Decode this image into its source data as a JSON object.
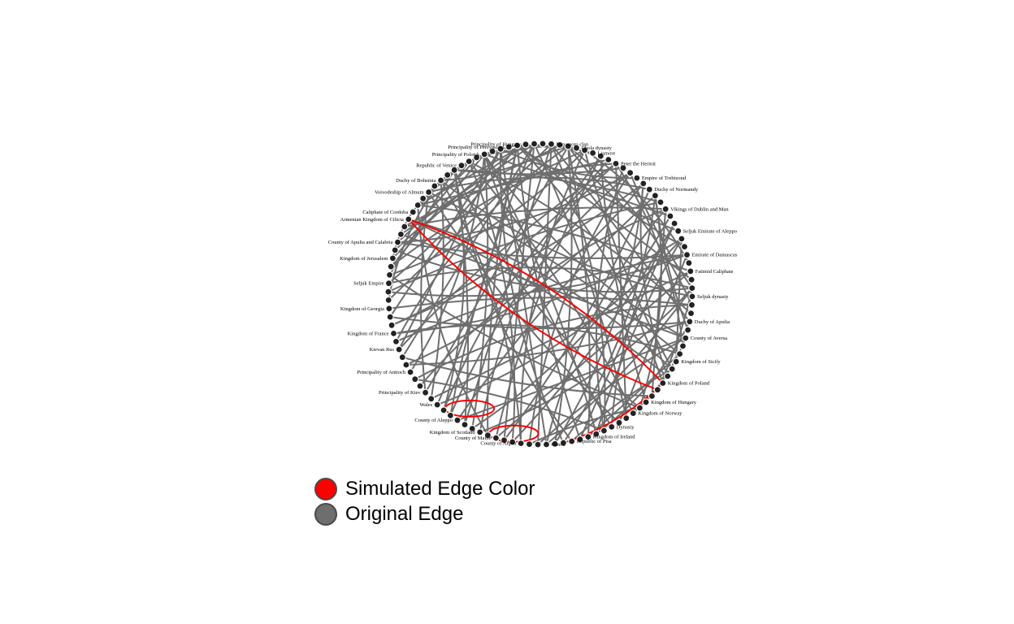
{
  "colors": {
    "simulated": "#ff0000",
    "original": "#6e6e6e",
    "node_fill": "#222222",
    "node_stroke": "#000000"
  },
  "legend": [
    {
      "label": "Simulated Edge Color",
      "color": "#ff0000"
    },
    {
      "label": "Original Edge",
      "color": "#6e6e6e"
    }
  ],
  "graph": {
    "node_count": 112,
    "labels": [
      "Armenian Kingdom of Cilicia",
      "County of Apulia and Calabria",
      "Kingdom of Jerusalem",
      "Seljuk Empire",
      "Kingdom of Georgia",
      "Kingdom of France",
      "Kievan Rus",
      "Principality of Antioch",
      "Principality of Kiev",
      "Wales",
      "County of Aleppo",
      "Kingdom of Scotland",
      "County of Maine",
      "County of Anjou",
      "Genoa",
      "Republic of Pisa",
      "Kingdom of Ireland",
      "Dynasty",
      "Kingdom of Norway",
      "Kingdom of Hungary",
      "Kingdom of Poland",
      "Kingdom of Sicily",
      "County of Aversa",
      "Duchy of Apulia",
      "Seljuk dynasty",
      "Fatimid Caliphate",
      "Emirate of Damascus",
      "Seljuk Emirate of Aleppo",
      "Vikings of Dublin and Man",
      "Duchy of Normandy",
      "Empire of Trebizond",
      "Peter the Hermit",
      "Lismore",
      "Chola dynasty",
      "Minamoto clan",
      "Principality of Hungary",
      "Principality of Pereyaslavl",
      "Principality of Polotsk",
      "Republic of Venice",
      "Duchy of Bohemia",
      "Voivodeship of Almum",
      "Caliphate of Cordoba"
    ],
    "edges": [
      [
        0,
        56
      ],
      [
        0,
        55
      ],
      [
        2,
        60
      ],
      [
        3,
        70
      ],
      [
        3,
        82
      ],
      [
        4,
        90
      ],
      [
        5,
        95
      ],
      [
        6,
        100
      ],
      [
        7,
        50
      ],
      [
        7,
        88
      ],
      [
        8,
        66
      ],
      [
        9,
        77
      ],
      [
        10,
        92
      ],
      [
        12,
        62
      ],
      [
        13,
        85
      ],
      [
        14,
        58
      ],
      [
        15,
        70
      ],
      [
        16,
        98
      ],
      [
        17,
        52
      ],
      [
        18,
        80
      ],
      [
        20,
        64
      ],
      [
        20,
        45
      ],
      [
        22,
        90
      ],
      [
        23,
        106
      ],
      [
        24,
        72
      ],
      [
        25,
        84
      ],
      [
        26,
        94
      ],
      [
        27,
        60
      ],
      [
        28,
        104
      ],
      [
        29,
        75
      ],
      [
        30,
        86
      ],
      [
        31,
        96
      ],
      [
        32,
        68
      ],
      [
        33,
        79
      ],
      [
        34,
        102
      ],
      [
        35,
        88
      ],
      [
        36,
        50
      ],
      [
        37,
        92
      ],
      [
        38,
        66
      ],
      [
        39,
        80
      ],
      [
        40,
        98
      ],
      [
        41,
        56
      ],
      [
        42,
        74
      ],
      [
        43,
        90
      ],
      [
        44,
        62
      ],
      [
        45,
        83
      ],
      [
        46,
        100
      ],
      [
        47,
        70
      ],
      [
        48,
        94
      ],
      [
        49,
        60
      ],
      [
        50,
        104
      ],
      [
        51,
        86
      ],
      [
        52,
        76
      ],
      [
        53,
        66
      ],
      [
        54,
        96
      ],
      [
        55,
        80
      ],
      [
        56,
        88
      ],
      [
        57,
        72
      ],
      [
        58,
        108
      ],
      [
        59,
        84
      ],
      [
        60,
        100
      ],
      [
        61,
        78
      ],
      [
        62,
        92
      ],
      [
        63,
        102
      ],
      [
        64,
        90
      ],
      [
        65,
        106
      ],
      [
        66,
        82
      ],
      [
        67,
        96
      ],
      [
        68,
        110
      ],
      [
        69,
        88
      ],
      [
        1,
        84
      ],
      [
        1,
        76
      ],
      [
        2,
        94
      ],
      [
        3,
        102
      ],
      [
        4,
        66
      ],
      [
        5,
        110
      ],
      [
        6,
        88
      ],
      [
        7,
        104
      ],
      [
        8,
        96
      ],
      [
        9,
        70
      ],
      [
        10,
        106
      ],
      [
        11,
        64
      ],
      [
        12,
        98
      ],
      [
        13,
        80
      ],
      [
        14,
        72
      ],
      [
        15,
        90
      ],
      [
        16,
        84
      ],
      [
        17,
        94
      ],
      [
        18,
        62
      ],
      [
        19,
        100
      ],
      [
        21,
        76
      ],
      [
        22,
        108
      ],
      [
        23,
        68
      ],
      [
        24,
        96
      ],
      [
        25,
        104
      ],
      [
        26,
        82
      ],
      [
        27,
        78
      ],
      [
        28,
        92
      ],
      [
        29,
        100
      ],
      [
        30,
        66
      ],
      [
        31,
        110
      ],
      [
        32,
        86
      ],
      [
        33,
        94
      ],
      [
        34,
        74
      ],
      [
        35,
        106
      ],
      [
        36,
        82
      ],
      [
        37,
        60
      ],
      [
        38,
        98
      ],
      [
        39,
        90
      ],
      [
        40,
        78
      ],
      [
        41,
        104
      ],
      [
        42,
        96
      ],
      [
        43,
        58
      ],
      [
        44,
        100
      ],
      [
        45,
        92
      ],
      [
        46,
        74
      ],
      [
        47,
        108
      ],
      [
        48,
        84
      ],
      [
        49,
        102
      ],
      [
        50,
        78
      ],
      [
        71,
        90
      ],
      [
        73,
        96
      ],
      [
        75,
        100
      ],
      [
        77,
        104
      ],
      [
        79,
        108
      ],
      [
        81,
        98
      ],
      [
        83,
        104
      ],
      [
        85,
        110
      ],
      [
        87,
        96
      ],
      [
        89,
        102
      ],
      [
        91,
        106
      ],
      [
        93,
        100
      ],
      [
        95,
        110
      ],
      [
        97,
        104
      ],
      [
        99,
        108
      ],
      [
        101,
        110
      ],
      [
        103,
        108
      ],
      [
        105,
        110
      ],
      [
        72,
        44
      ],
      [
        76,
        38
      ]
    ],
    "sim_edges": [
      [
        0,
        53
      ],
      [
        0,
        54
      ],
      [
        40,
        54
      ]
    ],
    "self_loops": [
      25,
      31
    ]
  }
}
